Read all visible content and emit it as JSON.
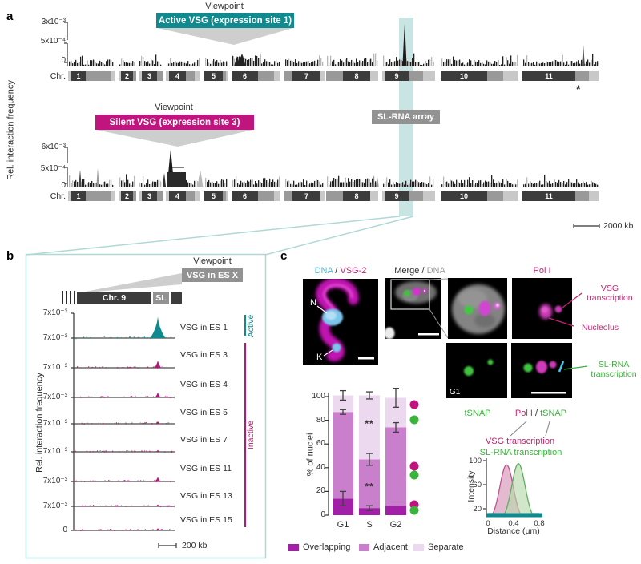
{
  "panel_a": {
    "label": "a",
    "ylabel": "Rel. interaction frequency",
    "chr_axis_label": "Chr.",
    "chromosomes": [
      "1",
      "2",
      "3",
      "4",
      "5",
      "6",
      "7",
      "8",
      "9",
      "10",
      "11"
    ],
    "rows": [
      {
        "viewpoint_title": "Viewpoint",
        "viewpoint_label": "Active VSG (expression site 1)",
        "accent": "#0F8A8F",
        "yticks": [
          "3x10⁻³",
          "5x10⁻⁴",
          "0"
        ]
      },
      {
        "viewpoint_title": "Viewpoint",
        "viewpoint_label": "Silent VSG (expression site 3)",
        "accent": "#C0157E",
        "yticks": [
          "6x10⁻³",
          "5x10⁻⁴",
          "0"
        ]
      }
    ],
    "sl_rna_array_label": "SL-RNA array",
    "scalebar_label": "2000 kb",
    "asterisk": "*"
  },
  "panel_b": {
    "label": "b",
    "viewpoint_title": "Viewpoint",
    "viewpoint_label": "VSG in ES X",
    "chr_label": "Chr. 9",
    "sl_label": "SL",
    "ylabel": "Rel. interaction frequency",
    "ytick_label": "7x10⁻³",
    "ybottom_label": "0",
    "scalebar_label": "200 kb",
    "active_label": "Active",
    "inactive_label": "Inactive",
    "tracks": [
      {
        "label": "VSG in ES 1",
        "state": "active",
        "peak_rel": 0.92
      },
      {
        "label": "VSG in ES 3",
        "state": "inactive",
        "peak_rel": 0.26
      },
      {
        "label": "VSG in ES 4",
        "state": "inactive",
        "peak_rel": 0.17
      },
      {
        "label": "VSG in ES 5",
        "state": "inactive",
        "peak_rel": 0.1
      },
      {
        "label": "VSG in ES 7",
        "state": "inactive",
        "peak_rel": 0.07
      },
      {
        "label": "VSG in ES 11",
        "state": "inactive",
        "peak_rel": 0.16
      },
      {
        "label": "VSG in ES 13",
        "state": "inactive",
        "peak_rel": 0.08
      },
      {
        "label": "VSG in ES 15",
        "state": "inactive",
        "peak_rel": 0.1
      }
    ]
  },
  "panel_c": {
    "label": "c",
    "img1_labels": {
      "dna": "DNA",
      "sep": " / ",
      "vsg2": "VSG-2"
    },
    "img1_marks": {
      "nucleus": "N",
      "kinetoplast": "K"
    },
    "img2_labels": {
      "merge": "Merge / ",
      "dna": "DNA"
    },
    "pol1_label": "Pol I",
    "g1_label": "G1",
    "annotations": {
      "vsg_transcription_line1": "VSG",
      "vsg_transcription_line2": "transcription",
      "nucleolus": "Nucleolus",
      "slrna_line1": "SL-RNA",
      "slrna_line2": "transcription"
    },
    "captions": {
      "tsnap": "tSNAP",
      "pol1": "Pol I",
      "sep": " / ",
      "tsnap2": "tSNAP"
    },
    "density_legend": {
      "vsg": "VSG transcription",
      "slrna": "SL-RNA transcription"
    }
  },
  "chart_data": [
    {
      "type": "bar",
      "subtype": "stacked",
      "ylabel": "% of nuclei",
      "categories": [
        "G1",
        "S",
        "G2"
      ],
      "series": [
        {
          "name": "Overlapping",
          "color": "#A21FA8",
          "values": [
            14,
            6,
            8
          ]
        },
        {
          "name": "Adjacent",
          "color": "#C97FCB",
          "values": [
            73,
            41,
            66
          ]
        },
        {
          "name": "Separate",
          "color": "#EDD9EF",
          "values": [
            14,
            54,
            25
          ]
        }
      ],
      "stack_tops": [
        [
          14,
          87,
          101
        ],
        [
          6,
          47,
          101
        ],
        [
          8,
          74,
          99
        ]
      ],
      "error_bars": [
        [
          6,
          2,
          4
        ],
        [
          2,
          5,
          3
        ],
        [
          0,
          4,
          8
        ]
      ],
      "significance": [
        {
          "category": "S",
          "at_value": 24,
          "marker": "**"
        },
        {
          "category": "S",
          "at_value": 77,
          "marker": "**"
        }
      ],
      "ylim": [
        0,
        100
      ],
      "yticks": [
        0,
        20,
        40,
        60,
        80,
        100
      ],
      "legend": [
        "Overlapping",
        "Adjacent",
        "Separate"
      ]
    },
    {
      "type": "area",
      "xlabel": "Distance (μm)",
      "ylabel": "Intensity",
      "xticks": [
        "0",
        "0.4",
        "0.8"
      ],
      "yticks": [
        "20",
        "60",
        "100"
      ],
      "xlim": [
        0,
        0.8
      ],
      "series": [
        {
          "name": "VSG transcription",
          "color": "#C2528F",
          "fill": "#DDA6C4",
          "mean": 0.29,
          "sd": 0.105,
          "peak": 93
        },
        {
          "name": "SL-RNA transcription",
          "color": "#5FAE5F",
          "fill": "#B5D9AA",
          "mean": 0.475,
          "sd": 0.105,
          "peak": 95
        }
      ],
      "baseline_color": "#0F8A8F"
    }
  ],
  "colors": {
    "teal": "#0F8A8F",
    "teal_band": "#9CCFCC",
    "teal_border": "#AFD9D5",
    "magenta": "#C0157E",
    "magenta_dark": "#B31876",
    "gray_box": "#929292",
    "chrom_dark": "#3C3C3C",
    "chrom_mid": "#999999",
    "chrom_light": "#C8C8C8",
    "green": "#3CB33C",
    "cyan": "#49B8DC",
    "annotation_magenta": "#C22572"
  }
}
